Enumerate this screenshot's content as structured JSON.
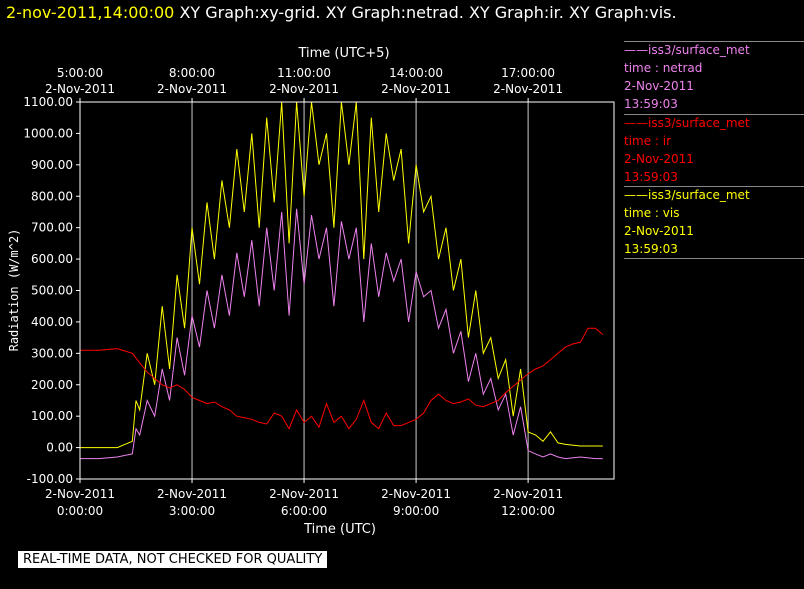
{
  "header": {
    "timestamp": "2-nov-2011,14:00:00",
    "graphs": "XY Graph:xy-grid.  XY Graph:netrad.  XY Graph:ir.  XY Graph:vis."
  },
  "legend": [
    {
      "source": "iss3/surface_met",
      "var": "time : netrad",
      "date": "2-Nov-2011",
      "time": "13:59:03",
      "color": "#ee82ee"
    },
    {
      "source": "iss3/surface_met",
      "var": "time : ir",
      "date": "2-Nov-2011",
      "time": "13:59:03",
      "color": "#ff0000"
    },
    {
      "source": "iss3/surface_met",
      "var": "time : vis",
      "date": "2-Nov-2011",
      "time": "13:59:03",
      "color": "#ffff00"
    }
  ],
  "footer": {
    "qc_notice": "REAL-TIME DATA, NOT CHECKED FOR QUALITY"
  },
  "chart_data": {
    "type": "line",
    "xlabel": "Time (UTC)",
    "x2label": "Time (UTC+5)",
    "ylabel": "Radiation (W/m^2)",
    "xlim": [
      0,
      14.3
    ],
    "ylim": [
      -100,
      1100
    ],
    "yticks": [
      "-100.00",
      "0.00",
      "100.00",
      "200.00",
      "300.00",
      "400.00",
      "500.00",
      "600.00",
      "700.00",
      "800.00",
      "900.00",
      "1000.00",
      "1100.00"
    ],
    "xticks_bottom": [
      {
        "h": 0,
        "date": "2-Nov-2011",
        "time": "0:00:00"
      },
      {
        "h": 3,
        "date": "2-Nov-2011",
        "time": "3:00:00"
      },
      {
        "h": 6,
        "date": "2-Nov-2011",
        "time": "6:00:00"
      },
      {
        "h": 9,
        "date": "2-Nov-2011",
        "time": "9:00:00"
      },
      {
        "h": 12,
        "date": "2-Nov-2011",
        "time": "12:00:00"
      }
    ],
    "xticks_top": [
      {
        "h": 0,
        "date": "2-Nov-2011",
        "time": "5:00:00"
      },
      {
        "h": 3,
        "date": "2-Nov-2011",
        "time": "8:00:00"
      },
      {
        "h": 6,
        "date": "2-Nov-2011",
        "time": "11:00:00"
      },
      {
        "h": 9,
        "date": "2-Nov-2011",
        "time": "14:00:00"
      },
      {
        "h": 12,
        "date": "2-Nov-2011",
        "time": "17:00:00"
      }
    ],
    "grid": true,
    "series": [
      {
        "name": "iss3/surface_met time : vis",
        "color": "#ffff00",
        "x": [
          0,
          0.5,
          1.0,
          1.4,
          1.5,
          1.6,
          1.8,
          2.0,
          2.2,
          2.4,
          2.6,
          2.8,
          3.0,
          3.2,
          3.4,
          3.6,
          3.8,
          4.0,
          4.2,
          4.4,
          4.6,
          4.8,
          5.0,
          5.2,
          5.4,
          5.6,
          5.8,
          6.0,
          6.2,
          6.4,
          6.6,
          6.8,
          7.0,
          7.2,
          7.4,
          7.6,
          7.8,
          8.0,
          8.2,
          8.4,
          8.6,
          8.8,
          9.0,
          9.2,
          9.4,
          9.6,
          9.8,
          10.0,
          10.2,
          10.4,
          10.6,
          10.8,
          11.0,
          11.2,
          11.4,
          11.6,
          11.8,
          12.0,
          12.2,
          12.4,
          12.6,
          12.8,
          13.0,
          13.4,
          13.8,
          14.0
        ],
        "y": [
          0,
          0,
          0,
          20,
          150,
          120,
          300,
          200,
          450,
          250,
          550,
          380,
          700,
          520,
          780,
          600,
          850,
          700,
          950,
          750,
          1000,
          700,
          1050,
          780,
          1100,
          650,
          1100,
          800,
          1100,
          900,
          1000,
          700,
          1100,
          900,
          1100,
          600,
          1050,
          750,
          1000,
          850,
          950,
          650,
          900,
          750,
          800,
          600,
          700,
          500,
          600,
          350,
          500,
          300,
          350,
          220,
          280,
          100,
          250,
          50,
          40,
          20,
          50,
          15,
          10,
          5,
          5,
          5
        ]
      },
      {
        "name": "iss3/surface_met time : netrad",
        "color": "#ee82ee",
        "x": [
          0,
          0.5,
          1.0,
          1.4,
          1.5,
          1.6,
          1.8,
          2.0,
          2.2,
          2.4,
          2.6,
          2.8,
          3.0,
          3.2,
          3.4,
          3.6,
          3.8,
          4.0,
          4.2,
          4.4,
          4.6,
          4.8,
          5.0,
          5.2,
          5.4,
          5.6,
          5.8,
          6.0,
          6.2,
          6.4,
          6.6,
          6.8,
          7.0,
          7.2,
          7.4,
          7.6,
          7.8,
          8.0,
          8.2,
          8.4,
          8.6,
          8.8,
          9.0,
          9.2,
          9.4,
          9.6,
          9.8,
          10.0,
          10.2,
          10.4,
          10.6,
          10.8,
          11.0,
          11.2,
          11.4,
          11.6,
          11.8,
          12.0,
          12.2,
          12.4,
          12.6,
          12.8,
          13.0,
          13.4,
          13.8,
          14.0
        ],
        "y": [
          -35,
          -35,
          -30,
          -20,
          60,
          40,
          150,
          100,
          250,
          150,
          350,
          230,
          420,
          320,
          500,
          380,
          550,
          420,
          620,
          480,
          660,
          450,
          700,
          500,
          750,
          420,
          760,
          520,
          740,
          600,
          700,
          450,
          720,
          600,
          700,
          400,
          650,
          480,
          620,
          530,
          600,
          400,
          560,
          480,
          500,
          380,
          440,
          300,
          370,
          210,
          300,
          170,
          220,
          120,
          170,
          40,
          130,
          -10,
          -20,
          -30,
          -20,
          -30,
          -35,
          -30,
          -35,
          -35
        ]
      },
      {
        "name": "iss3/surface_met time : ir",
        "color": "#ff0000",
        "x": [
          0,
          0.5,
          1.0,
          1.4,
          1.6,
          1.8,
          2.0,
          2.2,
          2.4,
          2.6,
          2.8,
          3.0,
          3.2,
          3.4,
          3.6,
          3.8,
          4.0,
          4.2,
          4.4,
          4.6,
          4.8,
          5.0,
          5.2,
          5.4,
          5.6,
          5.8,
          6.0,
          6.2,
          6.4,
          6.6,
          6.8,
          7.0,
          7.2,
          7.4,
          7.6,
          7.8,
          8.0,
          8.2,
          8.4,
          8.6,
          8.8,
          9.0,
          9.2,
          9.4,
          9.6,
          9.8,
          10.0,
          10.2,
          10.4,
          10.6,
          10.8,
          11.0,
          11.2,
          11.4,
          11.6,
          11.8,
          12.0,
          12.2,
          12.4,
          12.6,
          12.8,
          13.0,
          13.2,
          13.4,
          13.6,
          13.8,
          14.0
        ],
        "y": [
          310,
          310,
          315,
          300,
          270,
          240,
          220,
          200,
          190,
          200,
          185,
          160,
          150,
          140,
          145,
          130,
          120,
          100,
          95,
          90,
          80,
          75,
          110,
          100,
          60,
          120,
          80,
          100,
          65,
          140,
          80,
          100,
          60,
          90,
          150,
          80,
          60,
          110,
          70,
          70,
          80,
          90,
          110,
          150,
          170,
          150,
          140,
          145,
          155,
          135,
          130,
          140,
          150,
          175,
          195,
          215,
          235,
          250,
          260,
          280,
          300,
          320,
          330,
          335,
          380,
          380,
          360
        ]
      }
    ]
  }
}
